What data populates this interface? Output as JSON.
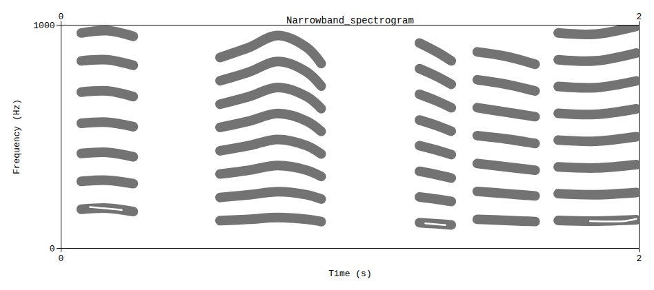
{
  "chart_data": {
    "type": "spectrogram",
    "title": "Narrowband_spectrogram",
    "x_label": "Time (s)",
    "y_label": "Frequency (Hz)",
    "xlim": [
      0,
      2
    ],
    "ylim": [
      0,
      1000
    ],
    "xticks": [
      0,
      2
    ],
    "yticks": [
      0,
      1000
    ],
    "series": [
      {
        "color": "#5a5a5a",
        "x": [
          0.07,
          0.16,
          0.25
        ],
        "values": [
          175,
          180,
          165
        ]
      },
      {
        "color": "#5a5a5a",
        "x": [
          0.07,
          0.16,
          0.25
        ],
        "values": [
          300,
          305,
          290
        ]
      },
      {
        "color": "#5a5a5a",
        "x": [
          0.07,
          0.16,
          0.25
        ],
        "values": [
          425,
          430,
          410
        ]
      },
      {
        "color": "#5a5a5a",
        "x": [
          0.07,
          0.16,
          0.25
        ],
        "values": [
          560,
          565,
          545
        ]
      },
      {
        "color": "#5a5a5a",
        "x": [
          0.07,
          0.16,
          0.25
        ],
        "values": [
          700,
          705,
          680
        ]
      },
      {
        "color": "#5a5a5a",
        "x": [
          0.07,
          0.16,
          0.25
        ],
        "values": [
          840,
          845,
          820
        ]
      },
      {
        "color": "#5a5a5a",
        "x": [
          0.07,
          0.16,
          0.25
        ],
        "values": [
          965,
          975,
          950
        ]
      },
      {
        "color": "#5a5a5a",
        "x": [
          0.55,
          0.65,
          0.75,
          0.85,
          0.9
        ],
        "values": [
          124,
          130,
          138,
          130,
          120
        ]
      },
      {
        "color": "#5a5a5a",
        "x": [
          0.55,
          0.65,
          0.75,
          0.85,
          0.9
        ],
        "values": [
          228,
          240,
          254,
          240,
          221
        ]
      },
      {
        "color": "#5a5a5a",
        "x": [
          0.55,
          0.65,
          0.75,
          0.85,
          0.9
        ],
        "values": [
          333,
          350,
          371,
          350,
          322
        ]
      },
      {
        "color": "#5a5a5a",
        "x": [
          0.55,
          0.65,
          0.75,
          0.85,
          0.9
        ],
        "values": [
          437,
          460,
          488,
          460,
          423
        ]
      },
      {
        "color": "#5a5a5a",
        "x": [
          0.55,
          0.65,
          0.75,
          0.85,
          0.9
        ],
        "values": [
          542,
          570,
          604,
          570,
          524
        ]
      },
      {
        "color": "#5a5a5a",
        "x": [
          0.55,
          0.65,
          0.75,
          0.85,
          0.9
        ],
        "values": [
          646,
          680,
          721,
          680,
          626
        ]
      },
      {
        "color": "#5a5a5a",
        "x": [
          0.55,
          0.65,
          0.75,
          0.85,
          0.9
        ],
        "values": [
          751,
          790,
          837,
          790,
          727
        ]
      },
      {
        "color": "#5a5a5a",
        "x": [
          0.55,
          0.65,
          0.75,
          0.85,
          0.9
        ],
        "values": [
          855,
          900,
          954,
          900,
          828
        ]
      },
      {
        "color": "#5a5a5a",
        "x": [
          1.24,
          1.3,
          1.35
        ],
        "values": [
          115,
          110,
          105
        ]
      },
      {
        "color": "#5a5a5a",
        "x": [
          1.24,
          1.3,
          1.35
        ],
        "values": [
          230,
          220,
          210
        ]
      },
      {
        "color": "#5a5a5a",
        "x": [
          1.24,
          1.3,
          1.35
        ],
        "values": [
          345,
          330,
          315
        ]
      },
      {
        "color": "#5a5a5a",
        "x": [
          1.24,
          1.3,
          1.35
        ],
        "values": [
          460,
          440,
          420
        ]
      },
      {
        "color": "#5a5a5a",
        "x": [
          1.24,
          1.3,
          1.35
        ],
        "values": [
          575,
          550,
          525
        ]
      },
      {
        "color": "#5a5a5a",
        "x": [
          1.24,
          1.3,
          1.35
        ],
        "values": [
          690,
          660,
          630
        ]
      },
      {
        "color": "#5a5a5a",
        "x": [
          1.24,
          1.3,
          1.35
        ],
        "values": [
          805,
          770,
          735
        ]
      },
      {
        "color": "#5a5a5a",
        "x": [
          1.24,
          1.3,
          1.35
        ],
        "values": [
          920,
          880,
          840
        ]
      },
      {
        "color": "#5a5a5a",
        "x": [
          1.44,
          1.54,
          1.64
        ],
        "values": [
          130,
          125,
          120
        ]
      },
      {
        "color": "#5a5a5a",
        "x": [
          1.44,
          1.54,
          1.64
        ],
        "values": [
          255,
          245,
          235
        ]
      },
      {
        "color": "#5a5a5a",
        "x": [
          1.44,
          1.54,
          1.64
        ],
        "values": [
          380,
          365,
          350
        ]
      },
      {
        "color": "#5a5a5a",
        "x": [
          1.44,
          1.54,
          1.64
        ],
        "values": [
          505,
          490,
          470
        ]
      },
      {
        "color": "#5a5a5a",
        "x": [
          1.44,
          1.54,
          1.64
        ],
        "values": [
          630,
          610,
          590
        ]
      },
      {
        "color": "#5a5a5a",
        "x": [
          1.44,
          1.54,
          1.64
        ],
        "values": [
          755,
          735,
          705
        ]
      },
      {
        "color": "#5a5a5a",
        "x": [
          1.44,
          1.54,
          1.64
        ],
        "values": [
          880,
          860,
          825
        ]
      },
      {
        "color": "#5a5a5a",
        "x": [
          1.72,
          1.85,
          1.99
        ],
        "values": [
          125,
          122,
          128
        ]
      },
      {
        "color": "#5a5a5a",
        "x": [
          1.72,
          1.85,
          1.99
        ],
        "values": [
          245,
          240,
          250
        ]
      },
      {
        "color": "#5a5a5a",
        "x": [
          1.72,
          1.85,
          1.99
        ],
        "values": [
          365,
          360,
          375
        ]
      },
      {
        "color": "#5a5a5a",
        "x": [
          1.72,
          1.85,
          1.99
        ],
        "values": [
          485,
          480,
          500
        ]
      },
      {
        "color": "#5a5a5a",
        "x": [
          1.72,
          1.85,
          1.99
        ],
        "values": [
          605,
          600,
          625
        ]
      },
      {
        "color": "#5a5a5a",
        "x": [
          1.72,
          1.85,
          1.99
        ],
        "values": [
          725,
          720,
          750
        ]
      },
      {
        "color": "#5a5a5a",
        "x": [
          1.72,
          1.85,
          1.99
        ],
        "values": [
          845,
          840,
          875
        ]
      },
      {
        "color": "#5a5a5a",
        "x": [
          1.72,
          1.85,
          1.99
        ],
        "values": [
          965,
          960,
          995
        ]
      },
      {
        "color": "#ffffff",
        "x": [
          0.1,
          0.16,
          0.21
        ],
        "values": [
          185,
          178,
          172
        ]
      },
      {
        "color": "#ffffff",
        "x": [
          1.26,
          1.33
        ],
        "values": [
          112,
          104
        ]
      },
      {
        "color": "#ffffff",
        "x": [
          1.83,
          1.9,
          1.95,
          1.99
        ],
        "values": [
          122,
          120,
          122,
          132
        ]
      }
    ]
  }
}
